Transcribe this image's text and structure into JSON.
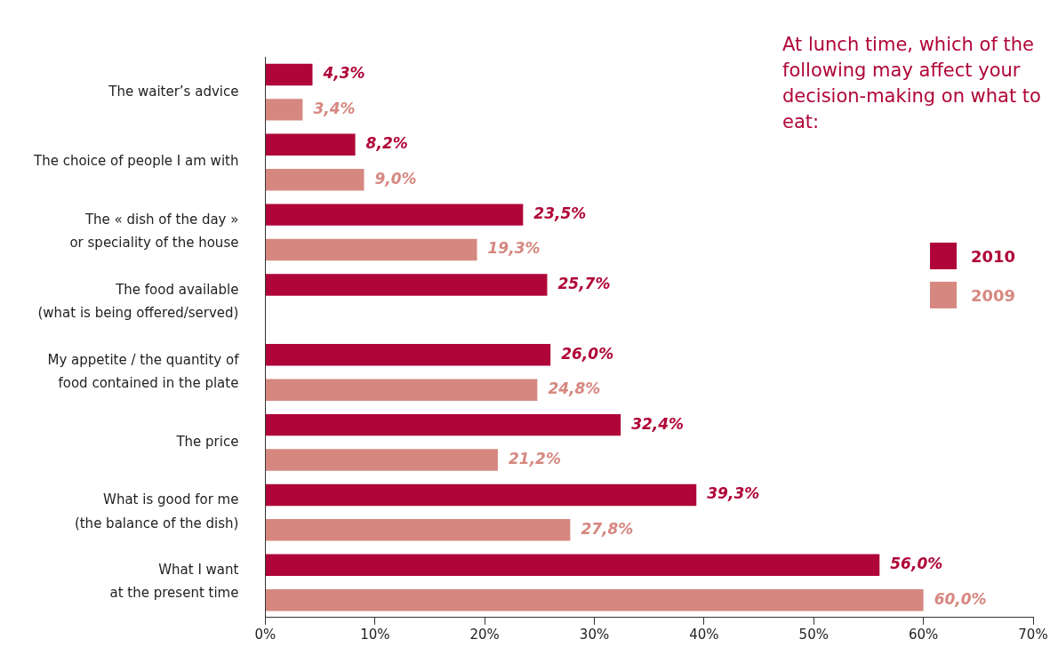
{
  "chart_data": {
    "type": "bar",
    "orientation": "horizontal",
    "title": "At lunch time, which of the following may affect your decision-making on what to eat:",
    "categories": [
      "The waiter’s advice",
      "The choice of people I am with",
      "The « dish of the day »\nor speciality of the house",
      "The food available\n(what is being offered/served)",
      "My appetite / the quantity of\nfood contained in the plate",
      "The price",
      "What is good for me\n(the balance of the dish)",
      "What I want\nat the present time"
    ],
    "series": [
      {
        "name": "2010",
        "color": "#b00538",
        "values": [
          4.3,
          8.2,
          23.5,
          25.7,
          26.0,
          32.4,
          39.3,
          56.0
        ],
        "value_labels": [
          "4,3%",
          "8,2%",
          "23,5%",
          "25,7%",
          "26,0%",
          "32,4%",
          "39,3%",
          "56,0%"
        ]
      },
      {
        "name": "2009",
        "color": "#d68880",
        "values": [
          3.4,
          9.0,
          19.3,
          null,
          24.8,
          21.2,
          27.8,
          60.0
        ],
        "value_labels": [
          "3,4%",
          "9,0%",
          "19,3%",
          null,
          "24,8%",
          "21,2%",
          "27,8%",
          "60,0%"
        ]
      }
    ],
    "xlim": [
      0,
      70
    ],
    "xticks": [
      {
        "value": 0,
        "label": "0%"
      },
      {
        "value": 10,
        "label": "10%"
      },
      {
        "value": 20,
        "label": "20%"
      },
      {
        "value": 30,
        "label": "30%"
      },
      {
        "value": 40,
        "label": "40%"
      },
      {
        "value": 50,
        "label": "50%"
      },
      {
        "value": 60,
        "label": "60%"
      },
      {
        "value": 70,
        "label": "70%"
      }
    ],
    "grid": false,
    "legend": "right"
  }
}
